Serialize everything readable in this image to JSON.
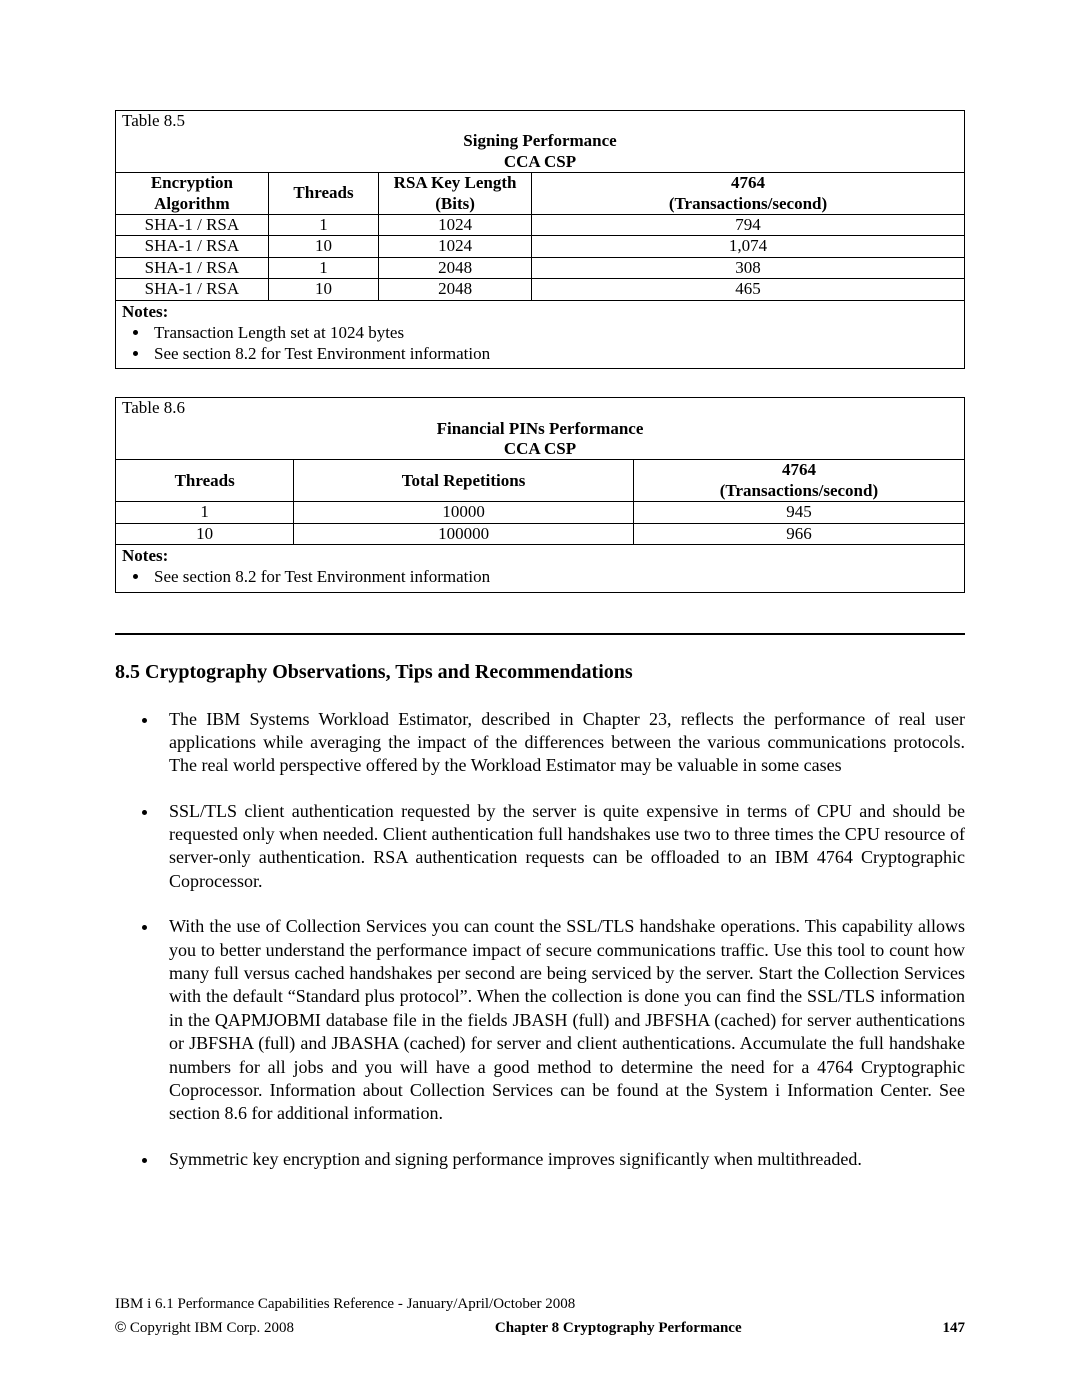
{
  "table85": {
    "label": "Table 8.5",
    "title_line1": "Signing Performance",
    "title_line2": "CCA CSP",
    "headers": {
      "c1a": "Encryption",
      "c1b": "Algorithm",
      "c2": "Threads",
      "c3a": "RSA Key Length",
      "c3b": "(Bits)",
      "c4a": "4764",
      "c4b": "(Transactions/second)"
    },
    "rows": [
      {
        "alg": "SHA-1 / RSA",
        "threads": "1",
        "key": "1024",
        "tps": "794"
      },
      {
        "alg": "SHA-1 / RSA",
        "threads": "10",
        "key": "1024",
        "tps": "1,074"
      },
      {
        "alg": "SHA-1 / RSA",
        "threads": "1",
        "key": "2048",
        "tps": "308"
      },
      {
        "alg": "SHA-1 / RSA",
        "threads": "10",
        "key": "2048",
        "tps": "465"
      }
    ],
    "notes_label": "Notes:",
    "notes": [
      "Transaction Length set at 1024 bytes",
      "See section 8.2 for Test Environment information"
    ]
  },
  "table86": {
    "label": "Table 8.6",
    "title_line1": "Financial PINs Performance",
    "title_line2": "CCA CSP",
    "headers": {
      "c1": "Threads",
      "c2": "Total Repetitions",
      "c3a": "4764",
      "c3b": "(Transactions/second)"
    },
    "rows": [
      {
        "threads": "1",
        "rep": "10000",
        "tps": "945"
      },
      {
        "threads": "10",
        "rep": "100000",
        "tps": "966"
      }
    ],
    "notes_label": "Notes:",
    "notes": [
      "See section 8.2 for Test Environment information"
    ]
  },
  "section": {
    "heading": "8.5 Cryptography Observations, Tips and Recommendations",
    "bullets": [
      "The IBM Systems Workload Estimator, described in Chapter 23, reflects the performance of real user applications while averaging the impact of the differences between the various communications protocols. The real world perspective offered by the Workload Estimator may be valuable in some cases",
      "SSL/TLS client authentication requested by the server is quite expensive in terms of CPU and should be requested only when needed. Client authentication full handshakes use two to three times the CPU resource of server-only authentication. RSA authentication requests can be offloaded to an IBM 4764 Cryptographic Coprocessor.",
      "With the use of Collection Services you can count the SSL/TLS handshake operations. This capability allows you to better understand the performance impact of secure communications traffic. Use this tool to count how many full versus cached handshakes per second are being serviced by the server. Start the Collection Services with the default “Standard plus protocol”. When the collection is done you can find the SSL/TLS information in the QAPMJOBMI database file in the fields JBASH (full) and JBFSHA (cached) for server authentications or JBFSHA (full) and JBASHA (cached) for server and client authentications. Accumulate the full handshake numbers for all jobs and you will have a good method to determine the need for a 4764 Cryptographic Coprocessor. Information about Collection Services can be found at the System i Information Center. See section 8.6 for additional information.",
      "Symmetric key encryption and signing performance improves significantly when multithreaded."
    ]
  },
  "footer": {
    "ref": "IBM i 6.1 Performance Capabilities Reference - January/April/October 2008",
    "copyright": " Copyright IBM Corp. 2008",
    "chapter": "Chapter 8 Cryptography Performance",
    "page": "147"
  },
  "colwidths": {
    "t85": [
      "18%",
      "13%",
      "18%",
      "51%"
    ],
    "t86": [
      "21%",
      "40%",
      "39%"
    ]
  }
}
